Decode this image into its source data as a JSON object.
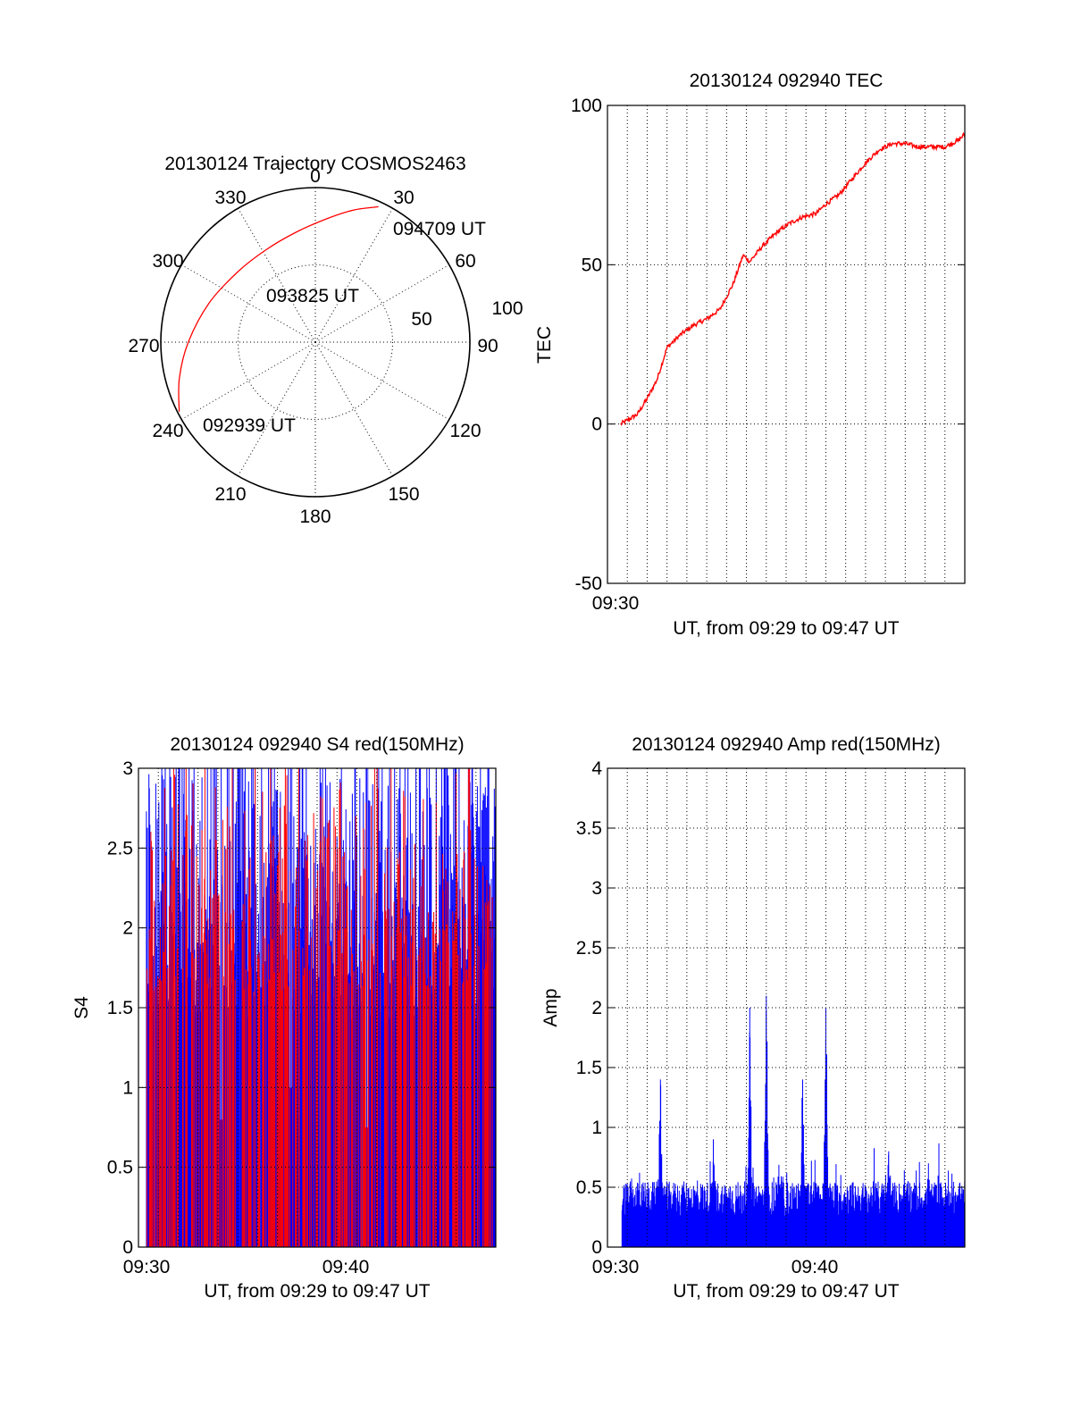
{
  "colors": {
    "red": "#ff0000",
    "blue": "#0000ff",
    "axis": "#000000"
  },
  "chart_data": [
    {
      "type": "polar",
      "title": "20130124 Trajectory COSMOS2463",
      "azimuth_labels": [
        "0",
        "30",
        "60",
        "90",
        "120",
        "150",
        "180",
        "210",
        "240",
        "270",
        "300",
        "330"
      ],
      "ring_labels": [
        "50",
        "100"
      ],
      "elevation_range": [
        0,
        90
      ],
      "grid": true,
      "track": {
        "color": "red",
        "points": [
          {
            "az": 243,
            "el": 1
          },
          {
            "az": 255,
            "el": 8
          },
          {
            "az": 270,
            "el": 16
          },
          {
            "az": 290,
            "el": 24
          },
          {
            "az": 312,
            "el": 29
          },
          {
            "az": 332,
            "el": 29
          },
          {
            "az": 350,
            "el": 25
          },
          {
            "az": 5,
            "el": 18
          },
          {
            "az": 16,
            "el": 10
          },
          {
            "az": 25,
            "el": 3
          }
        ]
      },
      "annotations": [
        {
          "text": "094709 UT",
          "az": 28,
          "el": 2
        },
        {
          "text": "093825 UT",
          "az": 330,
          "el": 63
        },
        {
          "text": "092939 UT",
          "az": 237,
          "el": 10
        }
      ]
    },
    {
      "type": "line",
      "title": "20130124 092940 TEC",
      "xlabel": "UT, from 09:29 to 09:47 UT",
      "ylabel": "TEC",
      "xlim": [
        "09:29:00",
        "09:47:00"
      ],
      "ylim": [
        -50,
        100
      ],
      "yticks": [
        "-50",
        "0",
        "50",
        "100"
      ],
      "xticks": [
        "09:30"
      ],
      "grid": true,
      "series": [
        {
          "color": "red",
          "x": [
            "09:29:40",
            "09:30:30",
            "09:31:00",
            "09:31:30",
            "09:32:00",
            "09:32:40",
            "09:33:20",
            "09:34:00",
            "09:34:40",
            "09:35:20",
            "09:35:50",
            "09:36:10",
            "09:36:50",
            "09:37:30",
            "09:38:10",
            "09:38:50",
            "09:39:30",
            "09:40:00",
            "09:40:40",
            "09:41:20",
            "09:42:00",
            "09:42:40",
            "09:43:20",
            "09:44:00",
            "09:44:40",
            "09:45:20",
            "09:46:00",
            "09:46:40",
            "09:47:00"
          ],
          "values": [
            0,
            3,
            8,
            14,
            24,
            28,
            31,
            33,
            36,
            44,
            53,
            51,
            56,
            60,
            63,
            65,
            66,
            69,
            72,
            77,
            82,
            86,
            88,
            88,
            87,
            87,
            87,
            89,
            91
          ]
        }
      ]
    },
    {
      "type": "bar",
      "title": "20130124 092940 S4 red(150MHz)",
      "xlabel": "UT, from 09:29 to 09:47 UT",
      "ylabel": "S4",
      "xlim": [
        "09:29:00",
        "09:47:00"
      ],
      "ylim": [
        0,
        3
      ],
      "yticks": [
        "0",
        "0.5",
        "1",
        "1.5",
        "2",
        "2.5",
        "3"
      ],
      "xticks": [
        "09:30",
        "09:40"
      ],
      "grid": true,
      "series": [
        {
          "name": "",
          "color": "blue",
          "description": "dense high-variability samples clipped at 3"
        },
        {
          "name": "",
          "color": "red",
          "description": "dense samples with frequent drops to 0"
        }
      ],
      "notable_minima": [
        {
          "x": "09:36:40",
          "value": 1.0
        },
        {
          "x": "09:40:30",
          "value": 0.75
        },
        {
          "x": "09:33:10",
          "value": 0.8
        }
      ]
    },
    {
      "type": "bar",
      "title": "20130124 092940 Amp red(150MHz)",
      "xlabel": "UT, from 09:29 to 09:47 UT",
      "ylabel": "Amp",
      "xlim": [
        "09:29:00",
        "09:47:00"
      ],
      "ylim": [
        0,
        4
      ],
      "yticks": [
        "0",
        "0.5",
        "1",
        "1.5",
        "2",
        "2.5",
        "3",
        "3.5",
        "4"
      ],
      "xticks": [
        "09:30",
        "09:40"
      ],
      "grid": true,
      "series": [
        {
          "name": "",
          "color": "blue",
          "description": "amplitude samples, baseline about 0.3 to 0.6"
        }
      ],
      "peaks": [
        {
          "x": "09:31:40",
          "value": 1.4
        },
        {
          "x": "09:36:10",
          "value": 2.0
        },
        {
          "x": "09:37:00",
          "value": 2.1
        },
        {
          "x": "09:38:50",
          "value": 1.4
        },
        {
          "x": "09:40:00",
          "value": 2.0
        },
        {
          "x": "09:34:20",
          "value": 0.9
        },
        {
          "x": "09:43:10",
          "value": 0.8
        },
        {
          "x": "09:45:10",
          "value": 0.7
        }
      ]
    }
  ]
}
